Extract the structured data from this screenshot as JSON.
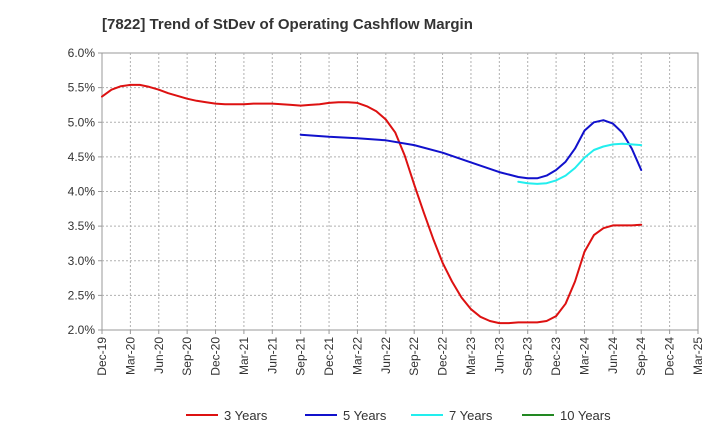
{
  "chart_data": {
    "type": "line",
    "title": "[7822]  Trend of StDev of Operating Cashflow Margin",
    "xlabel": "",
    "ylabel": "",
    "ylim": [
      2.0,
      6.0
    ],
    "y_ticks": [
      "2.0%",
      "2.5%",
      "3.0%",
      "3.5%",
      "4.0%",
      "4.5%",
      "5.0%",
      "5.5%",
      "6.0%"
    ],
    "x_ticks": [
      "Dec-19",
      "Mar-20",
      "Jun-20",
      "Sep-20",
      "Dec-20",
      "Mar-21",
      "Jun-21",
      "Sep-21",
      "Dec-21",
      "Mar-22",
      "Jun-22",
      "Sep-22",
      "Dec-22",
      "Mar-23",
      "Jun-23",
      "Sep-23",
      "Dec-23",
      "Mar-24",
      "Jun-24",
      "Sep-24",
      "Dec-24",
      "Mar-25"
    ],
    "grid": true,
    "legend_position": "bottom",
    "series": [
      {
        "name": "3 Years",
        "color": "#dd1111",
        "points": [
          [
            "Dec-19",
            5.37
          ],
          [
            "Jan-20",
            5.47
          ],
          [
            "Feb-20",
            5.52
          ],
          [
            "Mar-20",
            5.54
          ],
          [
            "Apr-20",
            5.54
          ],
          [
            "May-20",
            5.51
          ],
          [
            "Jun-20",
            5.47
          ],
          [
            "Jul-20",
            5.42
          ],
          [
            "Aug-20",
            5.38
          ],
          [
            "Sep-20",
            5.34
          ],
          [
            "Oct-20",
            5.31
          ],
          [
            "Nov-20",
            5.29
          ],
          [
            "Dec-20",
            5.27
          ],
          [
            "Jan-21",
            5.26
          ],
          [
            "Feb-21",
            5.26
          ],
          [
            "Mar-21",
            5.26
          ],
          [
            "Apr-21",
            5.27
          ],
          [
            "May-21",
            5.27
          ],
          [
            "Jun-21",
            5.27
          ],
          [
            "Jul-21",
            5.26
          ],
          [
            "Aug-21",
            5.25
          ],
          [
            "Sep-21",
            5.24
          ],
          [
            "Oct-21",
            5.25
          ],
          [
            "Nov-21",
            5.26
          ],
          [
            "Dec-21",
            5.28
          ],
          [
            "Jan-22",
            5.29
          ],
          [
            "Feb-22",
            5.29
          ],
          [
            "Mar-22",
            5.28
          ],
          [
            "Apr-22",
            5.23
          ],
          [
            "May-22",
            5.16
          ],
          [
            "Jun-22",
            5.04
          ],
          [
            "Jul-22",
            4.85
          ],
          [
            "Aug-22",
            4.52
          ],
          [
            "Sep-22",
            4.1
          ],
          [
            "Oct-22",
            3.7
          ],
          [
            "Nov-22",
            3.32
          ],
          [
            "Dec-22",
            2.97
          ],
          [
            "Jan-23",
            2.7
          ],
          [
            "Feb-23",
            2.47
          ],
          [
            "Mar-23",
            2.3
          ],
          [
            "Apr-23",
            2.19
          ],
          [
            "May-23",
            2.13
          ],
          [
            "Jun-23",
            2.1
          ],
          [
            "Jul-23",
            2.1
          ],
          [
            "Aug-23",
            2.11
          ],
          [
            "Sep-23",
            2.11
          ],
          [
            "Oct-23",
            2.11
          ],
          [
            "Nov-23",
            2.13
          ],
          [
            "Dec-23",
            2.2
          ],
          [
            "Jan-24",
            2.38
          ],
          [
            "Feb-24",
            2.7
          ],
          [
            "Mar-24",
            3.13
          ],
          [
            "Apr-24",
            3.37
          ],
          [
            "May-24",
            3.47
          ],
          [
            "Jun-24",
            3.51
          ],
          [
            "Jul-24",
            3.51
          ],
          [
            "Aug-24",
            3.51
          ],
          [
            "Sep-24",
            3.52
          ]
        ]
      },
      {
        "name": "5 Years",
        "color": "#1111cc",
        "points": [
          [
            "Sep-21",
            4.82
          ],
          [
            "Dec-21",
            4.79
          ],
          [
            "Mar-22",
            4.77
          ],
          [
            "Jun-22",
            4.74
          ],
          [
            "Sep-22",
            4.67
          ],
          [
            "Dec-22",
            4.56
          ],
          [
            "Mar-23",
            4.42
          ],
          [
            "Jun-23",
            4.28
          ],
          [
            "Aug-23",
            4.21
          ],
          [
            "Sep-23",
            4.19
          ],
          [
            "Oct-23",
            4.19
          ],
          [
            "Nov-23",
            4.23
          ],
          [
            "Dec-23",
            4.31
          ],
          [
            "Jan-24",
            4.43
          ],
          [
            "Feb-24",
            4.62
          ],
          [
            "Mar-24",
            4.88
          ],
          [
            "Apr-24",
            5.0
          ],
          [
            "May-24",
            5.03
          ],
          [
            "Jun-24",
            4.98
          ],
          [
            "Jul-24",
            4.85
          ],
          [
            "Aug-24",
            4.62
          ],
          [
            "Sep-24",
            4.31
          ]
        ]
      },
      {
        "name": "7 Years",
        "color": "#22eeee",
        "points": [
          [
            "Aug-23",
            4.14
          ],
          [
            "Sep-23",
            4.12
          ],
          [
            "Oct-23",
            4.11
          ],
          [
            "Nov-23",
            4.12
          ],
          [
            "Dec-23",
            4.16
          ],
          [
            "Jan-24",
            4.23
          ],
          [
            "Feb-24",
            4.34
          ],
          [
            "Mar-24",
            4.49
          ],
          [
            "Apr-24",
            4.6
          ],
          [
            "May-24",
            4.65
          ],
          [
            "Jun-24",
            4.68
          ],
          [
            "Jul-24",
            4.69
          ],
          [
            "Aug-24",
            4.68
          ],
          [
            "Sep-24",
            4.67
          ]
        ]
      },
      {
        "name": "10 Years",
        "color": "#228822",
        "points": []
      }
    ]
  }
}
